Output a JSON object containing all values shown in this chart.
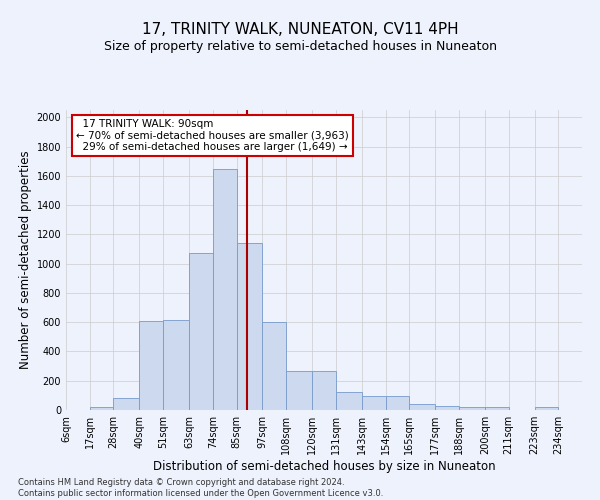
{
  "title": "17, TRINITY WALK, NUNEATON, CV11 4PH",
  "subtitle": "Size of property relative to semi-detached houses in Nuneaton",
  "xlabel": "Distribution of semi-detached houses by size in Nuneaton",
  "ylabel": "Number of semi-detached properties",
  "footnote": "Contains HM Land Registry data © Crown copyright and database right 2024.\nContains public sector information licensed under the Open Government Licence v3.0.",
  "property_label": "17 TRINITY WALK: 90sqm",
  "pct_smaller": 70,
  "count_smaller": 3963,
  "pct_larger": 29,
  "count_larger": 1649,
  "bin_labels": [
    "6sqm",
    "17sqm",
    "28sqm",
    "40sqm",
    "51sqm",
    "63sqm",
    "74sqm",
    "85sqm",
    "97sqm",
    "108sqm",
    "120sqm",
    "131sqm",
    "143sqm",
    "154sqm",
    "165sqm",
    "177sqm",
    "188sqm",
    "200sqm",
    "211sqm",
    "223sqm",
    "234sqm"
  ],
  "bin_edges": [
    6,
    17,
    28,
    40,
    51,
    63,
    74,
    85,
    97,
    108,
    120,
    131,
    143,
    154,
    165,
    177,
    188,
    200,
    211,
    223,
    234,
    245
  ],
  "bar_values": [
    0,
    22,
    80,
    610,
    615,
    1070,
    1650,
    1140,
    600,
    265,
    265,
    120,
    95,
    95,
    40,
    25,
    20,
    20,
    0,
    20,
    0
  ],
  "bar_color": "#ccd9ee",
  "bar_edge_color": "#7799cc",
  "vline_color": "#aa0000",
  "vline_x": 90,
  "annotation_box_color": "#ffffff",
  "annotation_box_edge": "#cc0000",
  "ylim": [
    0,
    2050
  ],
  "yticks": [
    0,
    200,
    400,
    600,
    800,
    1000,
    1200,
    1400,
    1600,
    1800,
    2000
  ],
  "grid_color": "#cccccc",
  "bg_color": "#eef2fc",
  "title_fontsize": 11,
  "subtitle_fontsize": 9,
  "xlabel_fontsize": 8.5,
  "ylabel_fontsize": 8.5,
  "tick_fontsize": 7,
  "annot_fontsize": 7.5,
  "footnote_fontsize": 6
}
